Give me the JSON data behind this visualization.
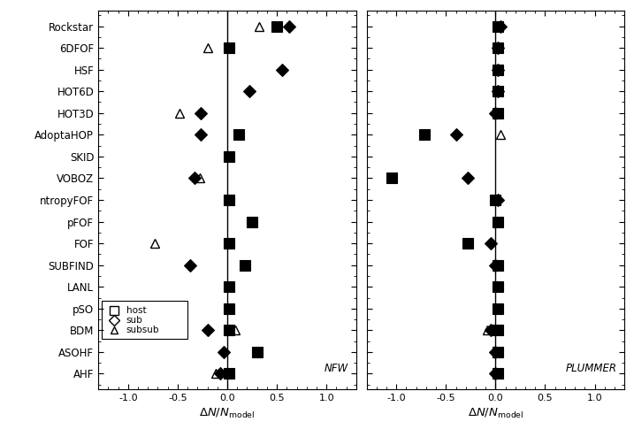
{
  "finders": [
    "Rockstar",
    "6DFOF",
    "HSF",
    "HOT6D",
    "HOT3D",
    "AdoptaHOP",
    "SKID",
    "VOBOZ",
    "ntropyFOF",
    "pFOF",
    "FOF",
    "SUBFIND",
    "LANL",
    "pSO",
    "BDM",
    "ASOHF",
    "AHF"
  ],
  "nfw_data": {
    "Rockstar": {
      "host": 0.5,
      "sub": 0.62,
      "subsub": 0.32
    },
    "6DFOF": {
      "host": 0.02,
      "sub": null,
      "subsub": -0.2
    },
    "HSF": {
      "host": null,
      "sub": 0.55,
      "subsub": null
    },
    "HOT6D": {
      "host": null,
      "sub": 0.22,
      "subsub": null
    },
    "HOT3D": {
      "host": null,
      "sub": -0.27,
      "subsub": -0.48
    },
    "AdoptaHOP": {
      "host": 0.12,
      "sub": -0.27,
      "subsub": null
    },
    "SKID": {
      "host": 0.02,
      "sub": null,
      "subsub": null
    },
    "VOBOZ": {
      "host": null,
      "sub": -0.33,
      "subsub": -0.28
    },
    "ntropyFOF": {
      "host": 0.02,
      "sub": null,
      "subsub": null
    },
    "pFOF": {
      "host": 0.25,
      "sub": null,
      "subsub": null
    },
    "FOF": {
      "host": 0.02,
      "sub": null,
      "subsub": -0.73
    },
    "SUBFIND": {
      "host": 0.18,
      "sub": -0.37,
      "subsub": null
    },
    "LANL": {
      "host": 0.02,
      "sub": null,
      "subsub": null
    },
    "pSO": {
      "host": 0.02,
      "sub": null,
      "subsub": null
    },
    "BDM": {
      "host": 0.02,
      "sub": -0.2,
      "subsub": 0.08
    },
    "ASOHF": {
      "host": 0.3,
      "sub": -0.04,
      "subsub": null
    },
    "AHF": {
      "host": 0.02,
      "sub": -0.07,
      "subsub": -0.12
    }
  },
  "plummer_data": {
    "Rockstar": {
      "host": 0.02,
      "sub": 0.05,
      "subsub": null
    },
    "6DFOF": {
      "host": 0.02,
      "sub": 0.02,
      "subsub": null
    },
    "HSF": {
      "host": 0.02,
      "sub": 0.02,
      "subsub": null
    },
    "HOT6D": {
      "host": 0.02,
      "sub": 0.02,
      "subsub": null
    },
    "HOT3D": {
      "host": 0.02,
      "sub": 0.0,
      "subsub": null
    },
    "AdoptaHOP": {
      "host": -0.72,
      "sub": -0.4,
      "subsub": 0.05
    },
    "SKID": {
      "host": null,
      "sub": null,
      "subsub": null
    },
    "VOBOZ": {
      "host": -1.05,
      "sub": -0.28,
      "subsub": null
    },
    "ntropyFOF": {
      "host": 0.0,
      "sub": 0.02,
      "subsub": null
    },
    "pFOF": {
      "host": 0.02,
      "sub": null,
      "subsub": null
    },
    "FOF": {
      "host": -0.28,
      "sub": -0.05,
      "subsub": null
    },
    "SUBFIND": {
      "host": 0.02,
      "sub": 0.0,
      "subsub": null
    },
    "LANL": {
      "host": 0.02,
      "sub": null,
      "subsub": null
    },
    "pSO": {
      "host": 0.02,
      "sub": null,
      "subsub": null
    },
    "BDM": {
      "host": 0.02,
      "sub": -0.05,
      "subsub": -0.08
    },
    "ASOHF": {
      "host": 0.02,
      "sub": 0.0,
      "subsub": null
    },
    "AHF": {
      "host": 0.02,
      "sub": 0.0,
      "subsub": null
    }
  },
  "xlabel": "$\\Delta N/N_{\\mathrm{model}}$",
  "xlim": [
    -1.3,
    1.3
  ],
  "label_nfw": "NFW",
  "label_plummer": "PLUMMER"
}
